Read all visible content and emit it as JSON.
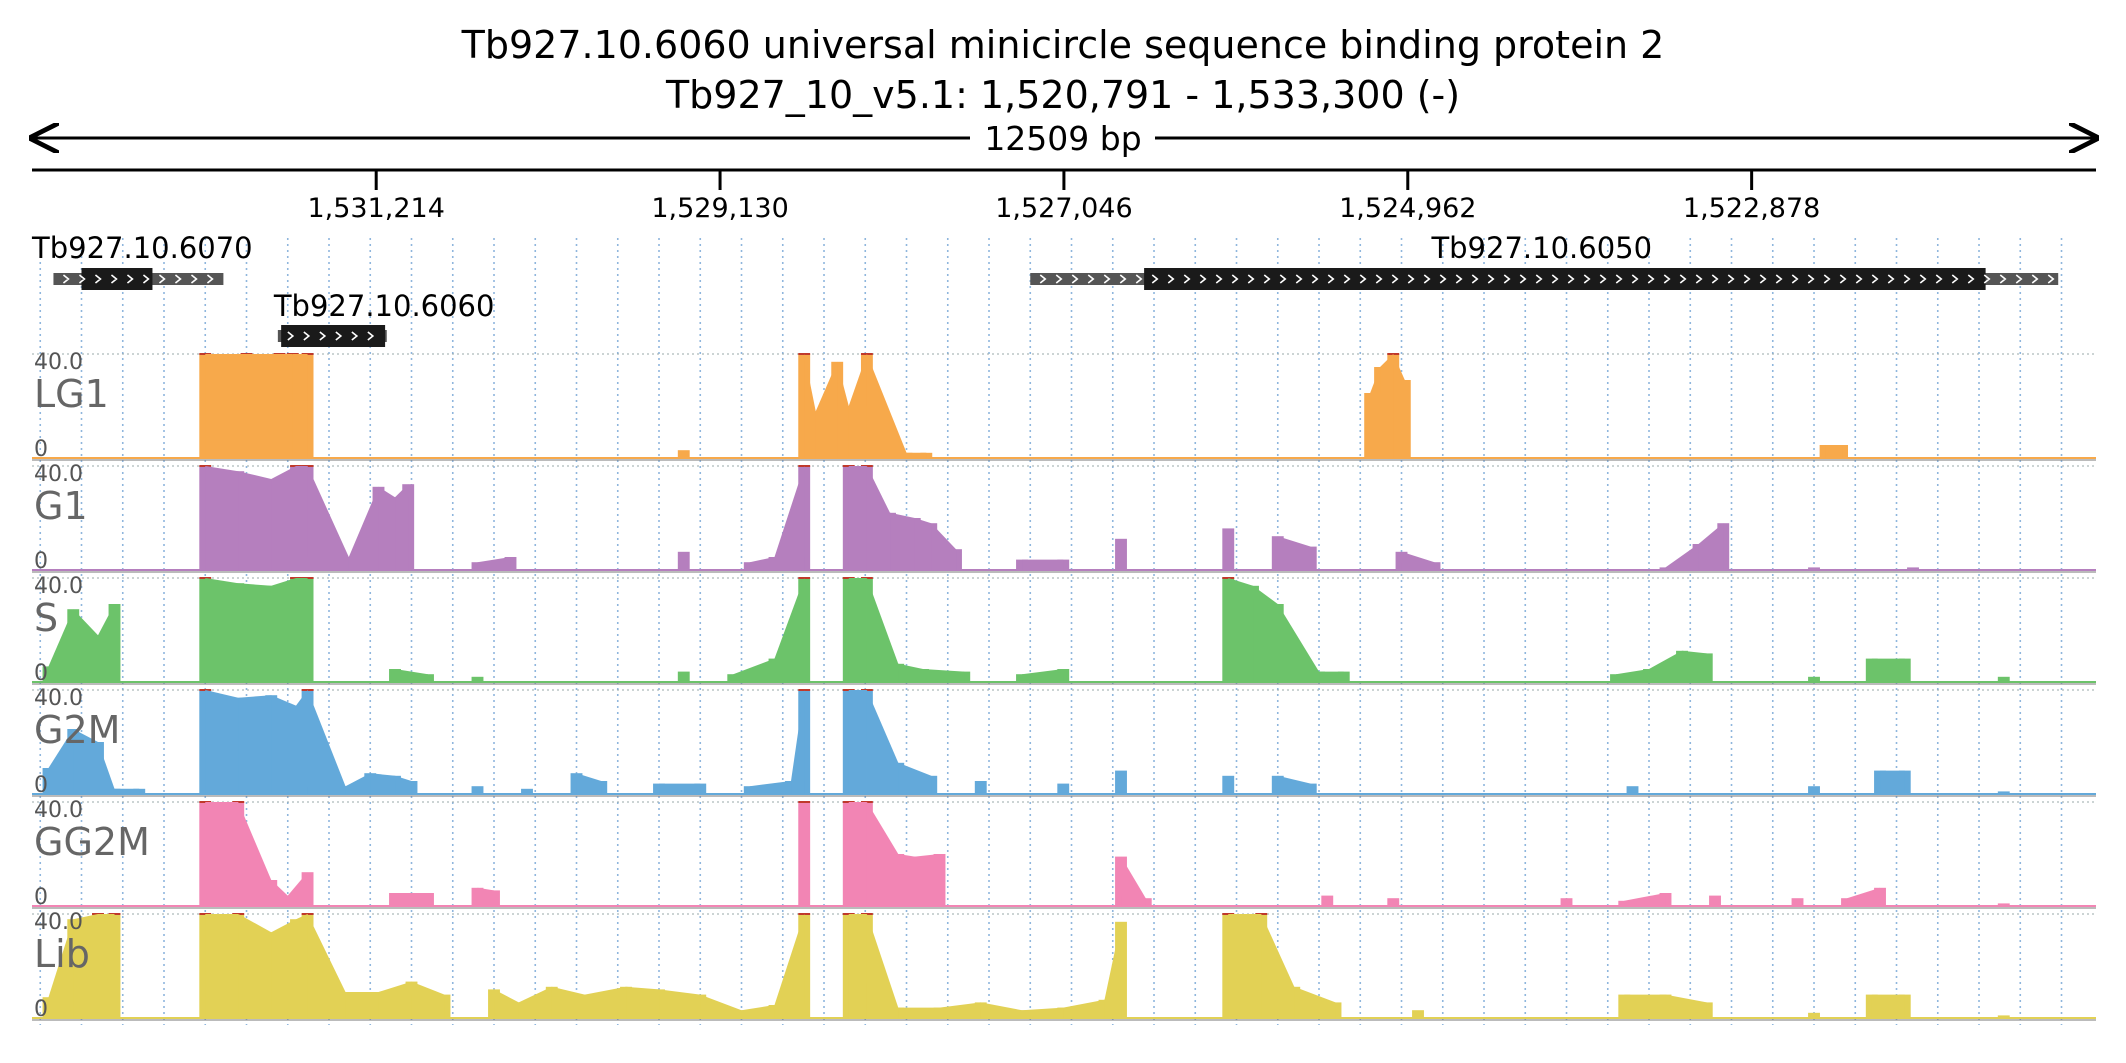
{
  "header": {
    "title_line1": "Tb927.10.6060  universal minicircle sequence binding protein 2",
    "title_line2": "Tb927_10_v5.1: 1,520,791 - 1,533,300 (-)",
    "span_label": "12509 bp"
  },
  "chart_data": {
    "type": "area",
    "genome": "Tb927_10_v5.1",
    "strand": "-",
    "x_range": [
      1533300,
      1520791
    ],
    "span_bp": 12509,
    "tick_labels": [
      "1,531,214",
      "1,529,130",
      "1,527,046",
      "1,524,962",
      "1,522,878"
    ],
    "tick_positions": [
      1531214,
      1529130,
      1527046,
      1524962,
      1522878
    ],
    "ylim": [
      0,
      40
    ],
    "y_max_label": "40.0",
    "y_min_label": "0",
    "genes": [
      {
        "id": "Tb927.10.6070",
        "utr": [
          1533170,
          1532140
        ],
        "cds": [
          1533000,
          1532570
        ]
      },
      {
        "id": "Tb927.10.6060",
        "utr": [
          1531810,
          1531150
        ],
        "cds": [
          1531790,
          1531160
        ]
      },
      {
        "id": "Tb927.10.6050",
        "utr": [
          1527250,
          1521020
        ],
        "cds": [
          1526560,
          1521460
        ]
      }
    ],
    "series": [
      {
        "name": "LG1",
        "color": "#F7A94B",
        "points": [
          [
            1532250,
            40
          ],
          [
            1532000,
            40
          ],
          [
            1531800,
            40
          ],
          [
            1531720,
            40
          ],
          [
            1531630,
            40
          ],
          [
            1529350,
            3
          ],
          [
            1528620,
            40
          ],
          [
            1528550,
            18
          ],
          [
            1528420,
            37
          ],
          [
            1528350,
            20
          ],
          [
            1528240,
            40
          ],
          [
            1528000,
            2
          ],
          [
            1527880,
            2
          ],
          [
            1525190,
            25
          ],
          [
            1525130,
            35
          ],
          [
            1525050,
            40
          ],
          [
            1524980,
            30
          ],
          [
            1522430,
            5
          ],
          [
            1522330,
            5
          ]
        ]
      },
      {
        "name": "G1",
        "color": "#B57FBE",
        "points": [
          [
            1532250,
            40
          ],
          [
            1532050,
            38
          ],
          [
            1531850,
            35
          ],
          [
            1531700,
            40
          ],
          [
            1531630,
            40
          ],
          [
            1531380,
            5
          ],
          [
            1531200,
            32
          ],
          [
            1531100,
            28
          ],
          [
            1531020,
            33
          ],
          [
            1530600,
            3
          ],
          [
            1530400,
            5
          ],
          [
            1529350,
            7
          ],
          [
            1528950,
            3
          ],
          [
            1528800,
            5
          ],
          [
            1528620,
            40
          ],
          [
            1528350,
            40
          ],
          [
            1528240,
            40
          ],
          [
            1528100,
            22
          ],
          [
            1527950,
            20
          ],
          [
            1527850,
            18
          ],
          [
            1527700,
            8
          ],
          [
            1527300,
            4
          ],
          [
            1527050,
            4
          ],
          [
            1526700,
            12
          ],
          [
            1526050,
            16
          ],
          [
            1525750,
            13
          ],
          [
            1525550,
            9
          ],
          [
            1525000,
            7
          ],
          [
            1524800,
            3
          ],
          [
            1523400,
            1
          ],
          [
            1523200,
            10
          ],
          [
            1523050,
            18
          ],
          [
            1522500,
            1
          ],
          [
            1521900,
            1
          ]
        ]
      },
      {
        "name": "S",
        "color": "#6CC36A",
        "points": [
          [
            1533200,
            6
          ],
          [
            1533050,
            28
          ],
          [
            1532900,
            18
          ],
          [
            1532800,
            30
          ],
          [
            1532250,
            40
          ],
          [
            1532050,
            38
          ],
          [
            1531850,
            37
          ],
          [
            1531700,
            40
          ],
          [
            1531630,
            40
          ],
          [
            1531100,
            5
          ],
          [
            1530900,
            3
          ],
          [
            1530600,
            2
          ],
          [
            1529350,
            4
          ],
          [
            1529050,
            3
          ],
          [
            1528800,
            9
          ],
          [
            1528620,
            40
          ],
          [
            1528350,
            40
          ],
          [
            1528240,
            40
          ],
          [
            1528050,
            7
          ],
          [
            1527900,
            5
          ],
          [
            1527650,
            4
          ],
          [
            1527300,
            3
          ],
          [
            1527050,
            5
          ],
          [
            1526050,
            40
          ],
          [
            1525900,
            37
          ],
          [
            1525750,
            30
          ],
          [
            1525500,
            4
          ],
          [
            1525350,
            4
          ],
          [
            1523700,
            3
          ],
          [
            1523500,
            5
          ],
          [
            1523300,
            12
          ],
          [
            1523150,
            11
          ],
          [
            1522500,
            2
          ],
          [
            1522150,
            9
          ],
          [
            1521950,
            9
          ],
          [
            1521350,
            2
          ]
        ]
      },
      {
        "name": "G2M",
        "color": "#63A9DA",
        "points": [
          [
            1533200,
            10
          ],
          [
            1533050,
            25
          ],
          [
            1532900,
            20
          ],
          [
            1532800,
            2
          ],
          [
            1532650,
            2
          ],
          [
            1532250,
            40
          ],
          [
            1532050,
            37
          ],
          [
            1531850,
            38
          ],
          [
            1531700,
            34
          ],
          [
            1531630,
            40
          ],
          [
            1531400,
            3
          ],
          [
            1531250,
            8
          ],
          [
            1531100,
            7
          ],
          [
            1531000,
            5
          ],
          [
            1530600,
            3
          ],
          [
            1530300,
            2
          ],
          [
            1530000,
            8
          ],
          [
            1529850,
            5
          ],
          [
            1529500,
            4
          ],
          [
            1529250,
            4
          ],
          [
            1528950,
            3
          ],
          [
            1528700,
            5
          ],
          [
            1528620,
            40
          ],
          [
            1528350,
            40
          ],
          [
            1528240,
            40
          ],
          [
            1528050,
            12
          ],
          [
            1527850,
            7
          ],
          [
            1527550,
            5
          ],
          [
            1527050,
            4
          ],
          [
            1526700,
            9
          ],
          [
            1526050,
            7
          ],
          [
            1525750,
            7
          ],
          [
            1525550,
            4
          ],
          [
            1523600,
            3
          ],
          [
            1522500,
            3
          ],
          [
            1522100,
            9
          ],
          [
            1521950,
            9
          ],
          [
            1521350,
            1
          ]
        ]
      },
      {
        "name": "GG2M",
        "color": "#F285B4",
        "points": [
          [
            1532250,
            40
          ],
          [
            1532050,
            40
          ],
          [
            1531850,
            10
          ],
          [
            1531750,
            4
          ],
          [
            1531630,
            13
          ],
          [
            1531100,
            5
          ],
          [
            1530900,
            5
          ],
          [
            1530600,
            7
          ],
          [
            1530500,
            6
          ],
          [
            1528620,
            40
          ],
          [
            1528350,
            40
          ],
          [
            1528240,
            40
          ],
          [
            1528050,
            20
          ],
          [
            1527950,
            19
          ],
          [
            1527800,
            20
          ],
          [
            1526700,
            19
          ],
          [
            1526550,
            3
          ],
          [
            1525450,
            4
          ],
          [
            1525050,
            3
          ],
          [
            1524000,
            3
          ],
          [
            1523650,
            2
          ],
          [
            1523400,
            5
          ],
          [
            1523100,
            4
          ],
          [
            1522600,
            3
          ],
          [
            1522300,
            3
          ],
          [
            1522100,
            7
          ],
          [
            1521350,
            1
          ]
        ]
      },
      {
        "name": "Lib",
        "color": "#E2D155",
        "points": [
          [
            1533200,
            8
          ],
          [
            1533050,
            38
          ],
          [
            1532900,
            40
          ],
          [
            1532800,
            40
          ],
          [
            1532250,
            40
          ],
          [
            1532050,
            40
          ],
          [
            1531850,
            33
          ],
          [
            1531700,
            38
          ],
          [
            1531630,
            40
          ],
          [
            1531400,
            10
          ],
          [
            1531200,
            10
          ],
          [
            1531000,
            14
          ],
          [
            1530800,
            9
          ],
          [
            1530500,
            11
          ],
          [
            1530350,
            6
          ],
          [
            1530150,
            12
          ],
          [
            1529950,
            9
          ],
          [
            1529700,
            12
          ],
          [
            1529500,
            11
          ],
          [
            1529250,
            9
          ],
          [
            1529000,
            3
          ],
          [
            1528800,
            5
          ],
          [
            1528620,
            40
          ],
          [
            1528350,
            40
          ],
          [
            1528240,
            40
          ],
          [
            1528050,
            4
          ],
          [
            1527800,
            4
          ],
          [
            1527550,
            6
          ],
          [
            1527300,
            3
          ],
          [
            1527050,
            4
          ],
          [
            1526800,
            7
          ],
          [
            1526700,
            37
          ],
          [
            1526050,
            40
          ],
          [
            1525850,
            40
          ],
          [
            1525650,
            12
          ],
          [
            1525400,
            6
          ],
          [
            1524900,
            3
          ],
          [
            1523650,
            9
          ],
          [
            1523400,
            9
          ],
          [
            1523150,
            6
          ],
          [
            1522500,
            2
          ],
          [
            1522150,
            9
          ],
          [
            1521950,
            9
          ],
          [
            1521350,
            1
          ]
        ]
      }
    ]
  }
}
